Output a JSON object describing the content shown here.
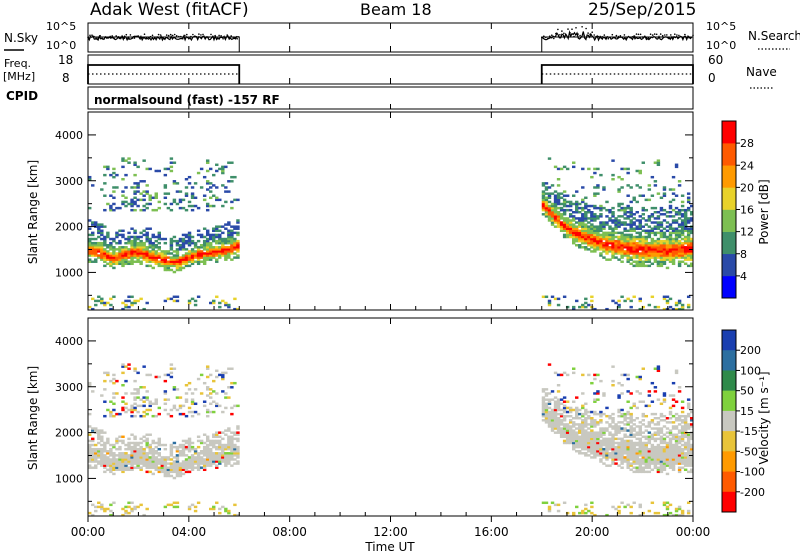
{
  "header": {
    "station": "Adak West (fitACF)",
    "beam": "Beam 18",
    "date": "25/Sep/2015"
  },
  "noise_panel": {
    "left_label": "N.Sky",
    "right_label": "N.Search",
    "left_ticks": [
      "10^5",
      "10^0"
    ],
    "right_ticks": [
      "10^5",
      "10^0"
    ]
  },
  "freq_panel": {
    "left_label_line1": "Freq.",
    "left_label_line2": "[MHz]",
    "left_ticks": [
      "18",
      "8"
    ],
    "right_label": "Nave",
    "right_ticks": [
      "60",
      "0"
    ],
    "cpid_label": "CPID"
  },
  "cpid_panel": {
    "text": "normalsound (fast) -157 RF"
  },
  "power_panel": {
    "ylabel": "Slant Range [km]",
    "yticks": [
      "1000",
      "2000",
      "3000",
      "4000"
    ],
    "colorbar_label": "Power [dB]",
    "colorbar_ticks": [
      "4",
      "8",
      "12",
      "16",
      "20",
      "24",
      "28"
    ],
    "colorbar_colors": [
      "#0000ff",
      "#2a4aa8",
      "#3f8f6a",
      "#7dbf52",
      "#e8d22a",
      "#ff9a00",
      "#ff5a00",
      "#ff0000"
    ]
  },
  "velocity_panel": {
    "ylabel": "Slant Range [km]",
    "yticks": [
      "1000",
      "2000",
      "3000",
      "4000"
    ],
    "colorbar_label": "Velocity [m s⁻¹]",
    "colorbar_ticks": [
      "200",
      "100",
      "50",
      "15",
      "-15",
      "-50",
      "-100",
      "-200"
    ],
    "colorbar_colors": [
      "#1a3fb0",
      "#2c6fa0",
      "#2f8a4a",
      "#7fd13d",
      "#c8c8c0",
      "#e8c43a",
      "#ff9a00",
      "#ff5a00",
      "#ff0000"
    ]
  },
  "x_axis": {
    "label": "Time UT",
    "ticks": [
      "00:00",
      "04:00",
      "08:00",
      "12:00",
      "16:00",
      "20:00",
      "00:00"
    ]
  },
  "chart_data": {
    "type": "heatmap",
    "x_range_hours": [
      0,
      24
    ],
    "y_range_km": [
      180,
      4500
    ],
    "data_intervals_hours": [
      [
        0,
        6
      ],
      [
        18,
        24
      ]
    ],
    "frequency_MHz": 10,
    "power_band": [
      {
        "t": 0.0,
        "center": 1480,
        "half": 120
      },
      {
        "t": 0.5,
        "center": 1400,
        "half": 120
      },
      {
        "t": 1.0,
        "center": 1280,
        "half": 100
      },
      {
        "t": 1.5,
        "center": 1380,
        "half": 110
      },
      {
        "t": 2.0,
        "center": 1430,
        "half": 110
      },
      {
        "t": 2.5,
        "center": 1330,
        "half": 110
      },
      {
        "t": 3.0,
        "center": 1250,
        "half": 100
      },
      {
        "t": 3.5,
        "center": 1200,
        "half": 100
      },
      {
        "t": 4.0,
        "center": 1310,
        "half": 100
      },
      {
        "t": 4.5,
        "center": 1380,
        "half": 100
      },
      {
        "t": 5.0,
        "center": 1420,
        "half": 100
      },
      {
        "t": 5.5,
        "center": 1470,
        "half": 110
      },
      {
        "t": 6.0,
        "center": 1560,
        "half": 120
      },
      {
        "t": 18.0,
        "center": 2500,
        "half": 100
      },
      {
        "t": 18.5,
        "center": 2200,
        "half": 110
      },
      {
        "t": 19.0,
        "center": 1950,
        "half": 120
      },
      {
        "t": 19.5,
        "center": 1800,
        "half": 130
      },
      {
        "t": 20.0,
        "center": 1700,
        "half": 140
      },
      {
        "t": 20.5,
        "center": 1600,
        "half": 150
      },
      {
        "t": 21.0,
        "center": 1550,
        "half": 160
      },
      {
        "t": 21.5,
        "center": 1500,
        "half": 170
      },
      {
        "t": 22.0,
        "center": 1480,
        "half": 170
      },
      {
        "t": 22.5,
        "center": 1470,
        "half": 170
      },
      {
        "t": 23.0,
        "center": 1450,
        "half": 170
      },
      {
        "t": 23.5,
        "center": 1480,
        "half": 170
      },
      {
        "t": 24.0,
        "center": 1500,
        "half": 170
      }
    ]
  }
}
